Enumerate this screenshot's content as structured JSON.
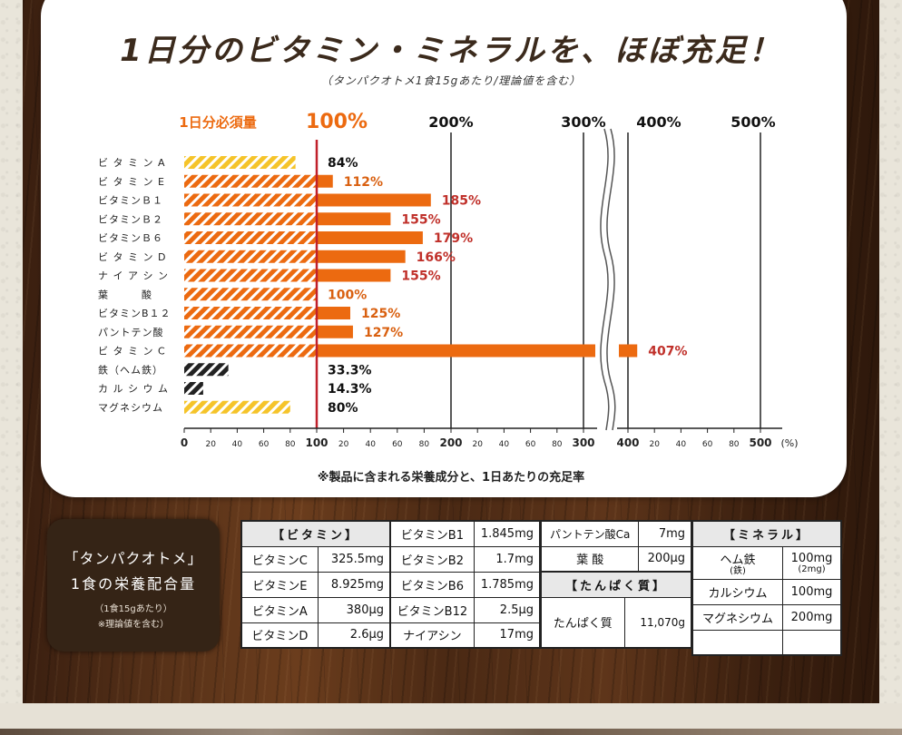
{
  "title": "1日分のビタミン・ミネラルを、ほぼ充足！",
  "subtitle": "（タンパクオトメ1食15gあたり/理論値を含む）",
  "footnote": "※製品に含まれる栄養成分と、1日あたりの充足率",
  "chart_data": {
    "type": "bar",
    "orientation": "horizontal",
    "reference_label": "1日分必須量",
    "reference_value_label": "100%",
    "reference_value": 100,
    "scale_headers": [
      "200%",
      "300%",
      "400%",
      "500%"
    ],
    "axis_break": "between 300 and 400",
    "unit_label": "(%)",
    "categories": [
      "ビ タ ミ ン A",
      "ビ タ ミ ン E",
      "ビタミンＢ１",
      "ビタミンＢ２",
      "ビタミンＢ６",
      "ビ タ ミ ン D",
      "ナ イ ア シ ン",
      "葉　　　酸",
      "ビタミンB１２",
      "パントテン酸",
      "ビ タ ミ ン C",
      "鉄（ヘム鉄）",
      "カ ル シ ウ ム",
      "マグネシウム"
    ],
    "values": [
      84,
      112,
      185,
      155,
      179,
      166,
      155,
      100,
      125,
      127,
      407,
      33.3,
      14.3,
      80
    ],
    "value_labels": [
      "84%",
      "112%",
      "185%",
      "155%",
      "179%",
      "166%",
      "155%",
      "100%",
      "125%",
      "127%",
      "407%",
      "33.3%",
      "14.3%",
      "80%"
    ],
    "bar_styles": [
      "yellow",
      "orange",
      "orange",
      "orange",
      "orange",
      "orange",
      "orange",
      "orange",
      "orange",
      "orange",
      "orange",
      "black",
      "black",
      "yellow"
    ],
    "x_tick_labels": [
      "0",
      "20",
      "40",
      "60",
      "80",
      "100",
      "20",
      "40",
      "60",
      "80",
      "200",
      "20",
      "40",
      "60",
      "80",
      "300",
      "400",
      "20",
      "40",
      "60",
      "80",
      "500"
    ],
    "colors": {
      "orange": "#ec6a10",
      "yellow": "#f5c42a",
      "black": "#222222",
      "reference_line": "#c0202a",
      "label_red": "#c0302a",
      "label_orange": "#d96010",
      "label_black": "#111111"
    }
  },
  "panel_label": {
    "line1": "「タンパクオトメ」",
    "line2": "1食の栄養配合量",
    "line3": "（1食15gあたり）",
    "line4": "※理論値を含む）"
  },
  "tables": {
    "vitamin_header": "【ビタミン】",
    "vit1": [
      {
        "name": "ビタミンC",
        "value": "325.5mg"
      },
      {
        "name": "ビタミンE",
        "value": "8.925mg"
      },
      {
        "name": "ビタミンA",
        "value": "380μg"
      },
      {
        "name": "ビタミンD",
        "value": "2.6μg"
      }
    ],
    "vit2": [
      {
        "name": "ビタミンB1",
        "value": "1.845mg"
      },
      {
        "name": "ビタミンB2",
        "value": "1.7mg"
      },
      {
        "name": "ビタミンB6",
        "value": "1.785mg"
      },
      {
        "name": "ビタミンB12",
        "value": "2.5μg"
      },
      {
        "name": "ナイアシン",
        "value": "17mg"
      }
    ],
    "vit3": [
      {
        "name": "パントテン酸Ca",
        "value": "7mg"
      },
      {
        "name": "葉 酸",
        "value": "200μg"
      }
    ],
    "protein_header": "【たんぱく質】",
    "protein": {
      "name": "たんぱく質",
      "value": "11,070g"
    },
    "mineral_header": "【ミネラル】",
    "minerals": [
      {
        "name": "ヘム鉄",
        "sub": "(鉄)",
        "value": "100mg",
        "subvalue": "(2mg)"
      },
      {
        "name": "カルシウム",
        "value": "100mg"
      },
      {
        "name": "マグネシウム",
        "value": "200mg"
      }
    ]
  }
}
